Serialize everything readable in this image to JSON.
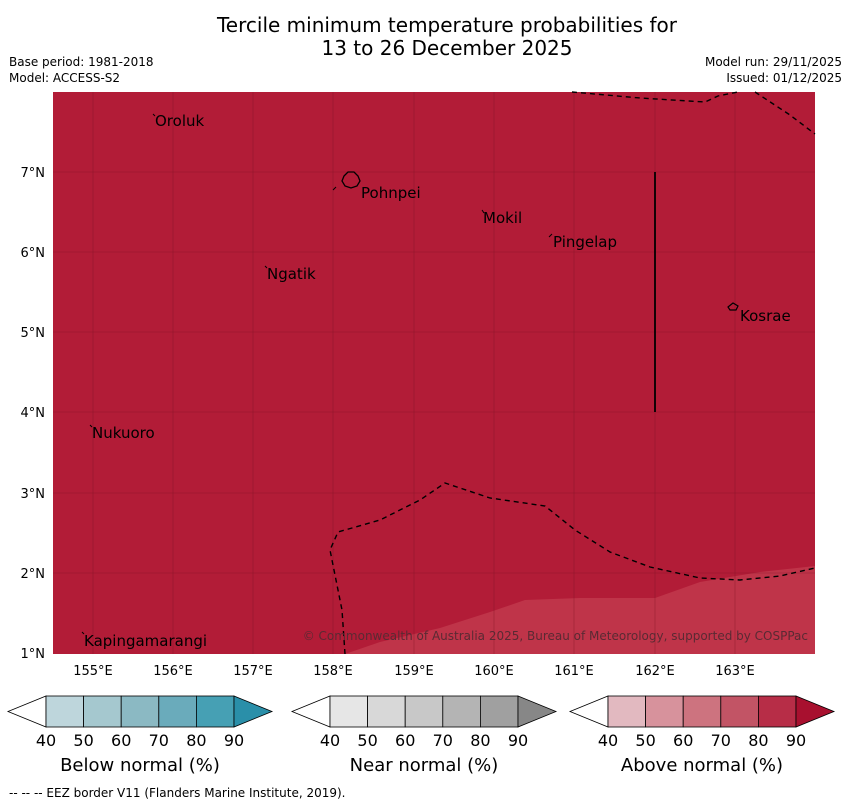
{
  "header": {
    "title_line1": "Tercile minimum temperature probabilities for",
    "title_line2": "13 to 26 December 2025",
    "base_period": "Base period: 1981-2018",
    "model": "Model: ACCESS-S2",
    "model_run": "Model run: 29/11/2025",
    "issued": "Issued: 01/12/2025"
  },
  "map": {
    "fill_color": "#b21c37",
    "lighter_fill_color": "#bf3449",
    "lat_labels": [
      "7°N",
      "6°N",
      "5°N",
      "4°N",
      "3°N",
      "2°N",
      "1°N"
    ],
    "lon_labels": [
      "155°E",
      "156°E",
      "157°E",
      "158°E",
      "159°E",
      "160°E",
      "161°E",
      "162°E",
      "163°E"
    ],
    "places": [
      {
        "name": "Oroluk"
      },
      {
        "name": "Pohnpei"
      },
      {
        "name": "Mokil"
      },
      {
        "name": "Pingelap"
      },
      {
        "name": "Ngatik"
      },
      {
        "name": "Kosrae"
      },
      {
        "name": "Nukuoro"
      },
      {
        "name": "Kapingamarangi"
      }
    ],
    "credit": "© Commonwealth of Australia 2025, Bureau of Meteorology, supported by COSPPac"
  },
  "legend": {
    "ticks": [
      "40",
      "50",
      "60",
      "70",
      "80",
      "90"
    ],
    "below": {
      "label": "Below normal (%)",
      "colors": [
        "#bed6dc",
        "#a5c8cf",
        "#8bb9c3",
        "#6aabbb",
        "#46a0b4",
        "#2a8fa9"
      ]
    },
    "near": {
      "label": "Near normal (%)",
      "colors": [
        "#e6e6e6",
        "#d8d8d8",
        "#c8c8c8",
        "#b4b4b4",
        "#a0a0a0",
        "#878787"
      ]
    },
    "above": {
      "label": "Above normal (%)",
      "colors": [
        "#e2b9c0",
        "#d7929c",
        "#cd737f",
        "#c25465",
        "#b72d47",
        "#a8102f"
      ]
    }
  },
  "footnote": "--  --  -- EEZ border V11 (Flanders Marine Institute, 2019)."
}
